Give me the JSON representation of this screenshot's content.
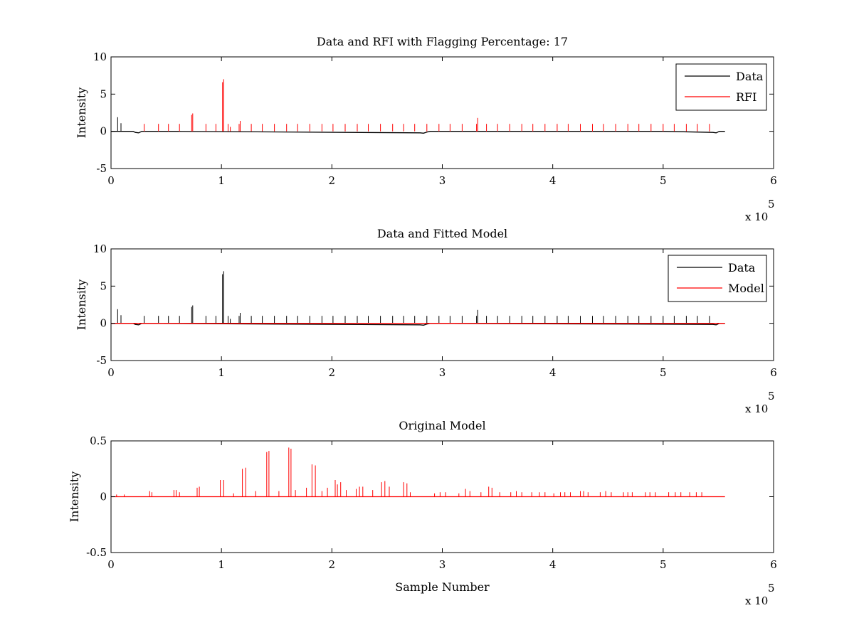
{
  "colors": {
    "data": "#000000",
    "rfi": "#ff0000",
    "model": "#ff0000",
    "background": "#ffffff"
  },
  "chart_data": [
    {
      "type": "line",
      "title": "Data and RFI with Flagging Percentage: 17",
      "xlabel": "",
      "ylabel": "Intensity",
      "xlim": [
        0,
        600000
      ],
      "ylim": [
        -5,
        10
      ],
      "x_ticks": [
        "0",
        "1",
        "2",
        "3",
        "4",
        "5",
        "6"
      ],
      "y_ticks": [
        "-5",
        "0",
        "5",
        "10"
      ],
      "x_exponent_label": "x 10",
      "x_exponent": "5",
      "legend": {
        "position": "top-right",
        "entries": [
          "Data",
          "RFI"
        ]
      },
      "series": [
        {
          "name": "Data",
          "baseline_x": [
            0,
            20000,
            22000,
            25000,
            28000,
            60000,
            280000,
            283000,
            286000,
            289000,
            500000,
            545000,
            548000,
            551000,
            556000
          ],
          "baseline_y": [
            0,
            0,
            -0.15,
            -0.2,
            0,
            0,
            -0.2,
            -0.25,
            -0.1,
            0,
            0,
            -0.15,
            -0.2,
            0,
            0
          ],
          "spikes_x": [
            6000,
            9000
          ],
          "spikes_y": [
            1.9,
            1.1
          ]
        },
        {
          "name": "RFI",
          "spikes_x": [
            30000,
            43000,
            52000,
            62000,
            73000,
            74000,
            86000,
            95000,
            101000,
            102000,
            106000,
            108000,
            116000,
            117000,
            127000,
            137000,
            148000,
            159000,
            169000,
            180000,
            191000,
            201000,
            212000,
            223000,
            233000,
            244000,
            255000,
            265000,
            275000,
            286000,
            297000,
            307000,
            318000,
            331000,
            332000,
            340000,
            350000,
            361000,
            372000,
            382000,
            393000,
            404000,
            414000,
            425000,
            436000,
            446000,
            457000,
            468000,
            478000,
            489000,
            500000,
            510000,
            521000,
            531000,
            542000
          ],
          "spikes_y": [
            1.0,
            1.0,
            1.0,
            1.0,
            2.2,
            2.4,
            1.0,
            1.0,
            6.6,
            7.0,
            1.0,
            0.6,
            1.0,
            1.4,
            1.0,
            1.0,
            1.0,
            1.0,
            1.0,
            1.0,
            1.0,
            1.0,
            1.0,
            1.0,
            1.0,
            1.0,
            1.0,
            1.0,
            1.0,
            1.0,
            1.0,
            1.0,
            1.0,
            1.0,
            1.8,
            1.0,
            1.0,
            1.0,
            1.0,
            1.0,
            1.0,
            1.0,
            1.0,
            1.0,
            1.0,
            1.0,
            1.0,
            1.0,
            1.0,
            1.0,
            1.0,
            1.0,
            1.0,
            1.0,
            1.0
          ]
        }
      ]
    },
    {
      "type": "line",
      "title": "Data and Fitted Model",
      "xlabel": "",
      "ylabel": "Intensity",
      "xlim": [
        0,
        600000
      ],
      "ylim": [
        -5,
        10
      ],
      "x_ticks": [
        "0",
        "1",
        "2",
        "3",
        "4",
        "5",
        "6"
      ],
      "y_ticks": [
        "-5",
        "0",
        "5",
        "10"
      ],
      "x_exponent_label": "x 10",
      "x_exponent": "5",
      "legend": {
        "position": "top-right",
        "entries": [
          "Data",
          "Model"
        ]
      },
      "series": [
        {
          "name": "Data",
          "baseline_x": [
            0,
            20000,
            22000,
            25000,
            28000,
            280000,
            283000,
            286000,
            289000,
            545000,
            548000,
            551000,
            556000
          ],
          "baseline_y": [
            0,
            0,
            -0.15,
            -0.2,
            0,
            -0.2,
            -0.25,
            -0.1,
            0,
            -0.15,
            -0.2,
            0,
            0
          ],
          "spikes_x": [
            6000,
            9000,
            30000,
            43000,
            52000,
            62000,
            73000,
            74000,
            86000,
            95000,
            101000,
            102000,
            106000,
            108000,
            116000,
            117000,
            127000,
            137000,
            148000,
            159000,
            169000,
            180000,
            191000,
            201000,
            212000,
            223000,
            233000,
            244000,
            255000,
            265000,
            275000,
            286000,
            297000,
            307000,
            318000,
            331000,
            332000,
            340000,
            350000,
            361000,
            372000,
            382000,
            393000,
            404000,
            414000,
            425000,
            436000,
            446000,
            457000,
            468000,
            478000,
            489000,
            500000,
            510000,
            521000,
            531000,
            542000
          ],
          "spikes_y": [
            1.9,
            1.1,
            1.0,
            1.0,
            1.0,
            1.0,
            2.2,
            2.4,
            1.0,
            1.0,
            6.6,
            7.0,
            1.0,
            0.6,
            1.0,
            1.4,
            1.0,
            1.0,
            1.0,
            1.0,
            1.0,
            1.0,
            1.0,
            1.0,
            1.0,
            1.0,
            1.0,
            1.0,
            1.0,
            1.0,
            1.0,
            1.0,
            1.0,
            1.0,
            1.0,
            1.0,
            1.8,
            1.0,
            1.0,
            1.0,
            1.0,
            1.0,
            1.0,
            1.0,
            1.0,
            1.0,
            1.0,
            1.0,
            1.0,
            1.0,
            1.0,
            1.0,
            1.0,
            1.0,
            1.0,
            1.0,
            1.0
          ]
        },
        {
          "name": "Model",
          "baseline_x": [
            0,
            556000
          ],
          "baseline_y": [
            0,
            0
          ],
          "spikes_x": [],
          "spikes_y": []
        }
      ]
    },
    {
      "type": "line",
      "title": "Original Model",
      "xlabel": "Sample Number",
      "ylabel": "Intensity",
      "xlim": [
        0,
        600000
      ],
      "ylim": [
        -0.5,
        0.5
      ],
      "x_ticks": [
        "0",
        "1",
        "2",
        "3",
        "4",
        "5",
        "6"
      ],
      "y_ticks": [
        "-0.5",
        "0",
        "0.5"
      ],
      "x_exponent_label": "x 10",
      "x_exponent": "5",
      "legend": null,
      "series": [
        {
          "name": "",
          "baseline_x": [
            0,
            556000
          ],
          "baseline_y": [
            0,
            0
          ],
          "spikes_x": [
            5000,
            12000,
            35000,
            37000,
            57000,
            59000,
            62000,
            78000,
            80000,
            99000,
            102000,
            111000,
            119000,
            122000,
            131000,
            141000,
            143000,
            152000,
            161000,
            163000,
            167000,
            177000,
            182000,
            185000,
            191000,
            196000,
            203000,
            205000,
            208000,
            213000,
            222000,
            225000,
            228000,
            237000,
            245000,
            248000,
            252000,
            265000,
            268000,
            271000,
            293000,
            298000,
            303000,
            315000,
            321000,
            325000,
            335000,
            342000,
            345000,
            352000,
            362000,
            367000,
            372000,
            381000,
            388000,
            393000,
            401000,
            407000,
            411000,
            416000,
            425000,
            428000,
            432000,
            443000,
            448000,
            453000,
            464000,
            468000,
            472000,
            484000,
            488000,
            493000,
            505000,
            511000,
            516000,
            524000,
            530000,
            535000
          ],
          "spikes_y": [
            0.02,
            0.02,
            0.05,
            0.04,
            0.06,
            0.06,
            0.04,
            0.08,
            0.09,
            0.15,
            0.15,
            0.03,
            0.25,
            0.26,
            0.05,
            0.4,
            0.41,
            0.05,
            0.44,
            0.43,
            0.06,
            0.08,
            0.29,
            0.28,
            0.05,
            0.08,
            0.15,
            0.11,
            0.13,
            0.06,
            0.07,
            0.09,
            0.09,
            0.06,
            0.13,
            0.14,
            0.09,
            0.13,
            0.12,
            0.04,
            0.03,
            0.04,
            0.04,
            0.03,
            0.07,
            0.05,
            0.04,
            0.09,
            0.08,
            0.04,
            0.04,
            0.05,
            0.04,
            0.04,
            0.04,
            0.04,
            0.03,
            0.04,
            0.04,
            0.04,
            0.05,
            0.05,
            0.04,
            0.04,
            0.05,
            0.04,
            0.04,
            0.04,
            0.04,
            0.04,
            0.04,
            0.04,
            0.04,
            0.04,
            0.04,
            0.04,
            0.04,
            0.04
          ]
        }
      ]
    }
  ]
}
